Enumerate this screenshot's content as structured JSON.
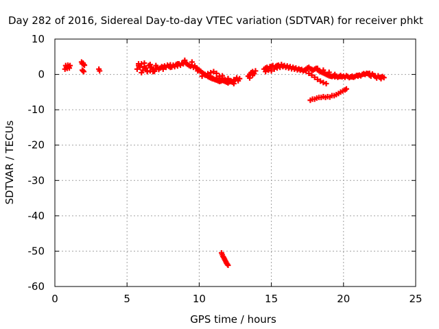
{
  "chart_data": {
    "type": "scatter",
    "title": "Day 282 of 2016, Sidereal Day-to-day VTEC variation (SDTVAR) for receiver phkt",
    "xlabel": "GPS time / hours",
    "ylabel": "SDTVAR / TECUs",
    "xlim": [
      0,
      25
    ],
    "ylim": [
      -60,
      10
    ],
    "xticks": [
      "0",
      "5",
      "10",
      "15",
      "20",
      "25"
    ],
    "yticks": [
      "10",
      "0",
      "-10",
      "-20",
      "-30",
      "-40",
      "-50",
      "-60"
    ],
    "grid": true,
    "marker": "plus",
    "color": "#ff0000",
    "series": [
      {
        "name": "SDTVAR",
        "x": [
          0.7,
          0.75,
          0.8,
          0.85,
          0.9,
          0.95,
          1.0,
          1.05,
          1.85,
          1.9,
          1.95,
          2.0,
          2.05,
          1.9,
          1.95,
          2.0,
          3.05,
          3.1,
          5.7,
          5.8,
          5.9,
          6.0,
          6.1,
          6.2,
          6.3,
          6.4,
          6.5,
          6.6,
          6.7,
          6.8,
          6.9,
          7.0,
          7.1,
          7.2,
          7.3,
          7.4,
          7.5,
          7.6,
          7.7,
          7.8,
          7.9,
          8.0,
          8.1,
          8.2,
          8.3,
          8.4,
          8.5,
          8.6,
          8.7,
          8.8,
          8.9,
          9.0,
          9.1,
          9.2,
          9.3,
          9.4,
          9.5,
          9.6,
          9.7,
          9.8,
          9.9,
          10.0,
          10.1,
          10.2,
          10.3,
          10.4,
          10.5,
          10.6,
          10.7,
          10.8,
          10.9,
          11.0,
          11.1,
          11.2,
          11.3,
          11.4,
          11.5,
          11.6,
          11.7,
          11.8,
          11.9,
          12.0,
          12.1,
          12.2,
          12.3,
          12.4,
          12.5,
          12.6,
          12.7,
          12.8,
          5.8,
          6.0,
          6.2,
          6.4,
          6.6,
          6.8,
          7.0,
          7.5,
          8.0,
          8.5,
          9.0,
          9.5,
          9.9,
          10.4,
          10.8,
          11.2,
          11.6,
          12.0,
          10.2,
          10.4,
          10.6,
          10.8,
          11.0,
          11.2,
          11.4,
          11.6,
          11.8,
          12.0,
          12.2,
          12.4,
          12.6,
          13.4,
          13.5,
          13.6,
          13.7,
          13.8,
          13.9,
          13.5,
          13.7,
          14.5,
          14.6,
          14.7,
          14.8,
          14.9,
          15.0,
          15.1,
          15.2,
          15.3,
          15.4,
          15.5,
          15.6,
          15.7,
          15.8,
          15.9,
          16.0,
          16.1,
          16.2,
          16.3,
          16.4,
          16.5,
          16.6,
          16.7,
          16.8,
          16.9,
          17.0,
          17.1,
          17.2,
          17.3,
          17.4,
          17.5,
          17.6,
          17.7,
          17.8,
          17.9,
          18.0,
          18.1,
          18.2,
          18.3,
          18.4,
          18.5,
          18.6,
          18.7,
          18.8,
          18.9,
          19.0,
          19.1,
          19.2,
          19.3,
          19.4,
          19.5,
          19.6,
          19.7,
          19.8,
          19.9,
          20.0,
          20.1,
          20.2,
          20.3,
          20.4,
          20.5,
          20.6,
          20.7,
          20.8,
          20.9,
          21.0,
          21.1,
          21.2,
          21.3,
          21.4,
          21.5,
          21.6,
          21.7,
          21.8,
          21.9,
          22.0,
          22.1,
          22.2,
          22.3,
          22.4,
          22.5,
          22.6,
          22.7,
          22.8,
          14.6,
          15.0,
          15.4,
          15.8,
          16.2,
          16.6,
          17.0,
          17.4,
          17.8,
          18.2,
          18.6,
          19.0,
          19.4,
          19.8,
          20.2,
          20.6,
          21.0,
          21.4,
          21.8,
          22.2,
          22.6,
          17.7,
          17.85,
          18.0,
          18.15,
          18.3,
          18.45,
          18.6,
          18.75,
          18.9,
          19.05,
          19.2,
          19.35,
          19.5,
          19.65,
          19.8,
          19.95,
          20.1,
          20.2,
          17.6,
          17.8,
          18.0,
          18.2,
          18.4,
          18.6,
          18.8,
          11.55,
          11.6,
          11.65,
          11.7,
          11.75,
          11.8,
          11.85,
          11.9,
          11.95,
          12.0
        ],
        "y": [
          1.5,
          2.5,
          2.0,
          1.7,
          2.6,
          2.2,
          1.8,
          2.5,
          3.5,
          3.0,
          3.2,
          2.8,
          2.6,
          1.2,
          1.0,
          0.8,
          1.5,
          1.0,
          1.5,
          2.5,
          2.0,
          3.0,
          1.2,
          2.2,
          1.8,
          0.8,
          2.5,
          1.0,
          2.0,
          1.5,
          0.9,
          1.6,
          2.0,
          1.4,
          1.8,
          2.2,
          2.0,
          2.4,
          2.0,
          2.6,
          2.3,
          2.7,
          2.1,
          2.6,
          2.2,
          2.8,
          2.4,
          3.0,
          2.6,
          3.2,
          3.0,
          3.5,
          3.1,
          2.8,
          2.5,
          2.3,
          2.6,
          2.0,
          2.4,
          1.8,
          1.5,
          1.2,
          0.9,
          0.5,
          0.2,
          0.0,
          -0.3,
          -0.6,
          -0.8,
          -1.0,
          -1.2,
          -1.3,
          -1.5,
          -1.6,
          -1.8,
          -2.0,
          -1.9,
          -1.7,
          -1.8,
          -2.0,
          -2.2,
          -2.4,
          -2.1,
          -1.8,
          -2.2,
          -2.6,
          -1.5,
          -1.0,
          -1.8,
          -1.2,
          3.0,
          0.5,
          3.2,
          1.0,
          2.8,
          0.8,
          2.5,
          1.5,
          2.0,
          3.0,
          4.0,
          3.5,
          1.0,
          0.0,
          -0.5,
          -1.0,
          -0.4,
          -1.2,
          -0.5,
          -0.2,
          0.2,
          0.5,
          0.8,
          0.3,
          -0.5,
          -1.0,
          -1.5,
          -1.2,
          -2.0,
          -1.5,
          -1.0,
          -0.5,
          0.0,
          0.5,
          0.8,
          0.2,
          1.0,
          -1.0,
          -0.2,
          1.5,
          0.8,
          2.0,
          1.2,
          2.2,
          1.0,
          2.5,
          1.5,
          2.3,
          1.8,
          2.6,
          2.0,
          2.8,
          2.2,
          2.5,
          2.0,
          2.4,
          1.8,
          2.2,
          1.6,
          2.0,
          1.5,
          1.8,
          1.3,
          1.6,
          1.2,
          1.4,
          1.0,
          1.2,
          1.5,
          1.8,
          2.0,
          1.6,
          1.4,
          1.2,
          1.5,
          1.7,
          1.3,
          1.0,
          0.8,
          0.6,
          0.4,
          0.2,
          0.0,
          -0.2,
          -0.4,
          -0.5,
          -0.6,
          -0.4,
          -0.7,
          -0.5,
          -0.8,
          -0.6,
          -0.3,
          -0.7,
          -0.5,
          -0.8,
          -0.4,
          -0.6,
          -0.9,
          -0.7,
          -0.5,
          -0.8,
          -0.6,
          -0.3,
          -0.5,
          -0.2,
          -0.4,
          0.0,
          0.2,
          0.0,
          0.3,
          0.2,
          -0.2,
          -0.5,
          0.1,
          -0.3,
          -0.6,
          -1.0,
          -0.4,
          -0.8,
          -1.2,
          -0.6,
          -0.9,
          1.8,
          2.2,
          2.5,
          2.3,
          1.9,
          1.6,
          1.3,
          1.0,
          1.4,
          1.7,
          1.2,
          0.6,
          0.0,
          -0.6,
          -0.4,
          -0.7,
          -0.3,
          0.1,
          0.3,
          -0.4,
          -0.8,
          -7.3,
          -7.0,
          -7.0,
          -6.7,
          -6.5,
          -6.5,
          -6.3,
          -6.5,
          -6.3,
          -6.4,
          -6.0,
          -6.0,
          -5.7,
          -5.4,
          -5.0,
          -4.7,
          -4.4,
          -4.1,
          0.3,
          -0.2,
          -0.8,
          -1.4,
          -1.9,
          -2.3,
          -2.6,
          -50.5,
          -51.0,
          -51.5,
          -51.8,
          -52.2,
          -52.6,
          -53.0,
          -53.4,
          -53.7,
          -54.0
        ]
      }
    ]
  }
}
